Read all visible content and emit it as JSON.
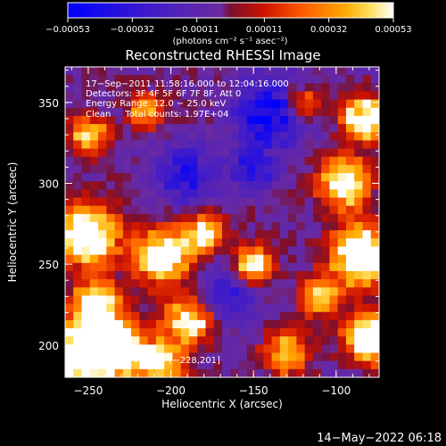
{
  "chart_data": {
    "type": "heatmap",
    "title": "Reconstructed RHESSI Image",
    "xlabel": "Heliocentric X (arcsec)",
    "ylabel": "Heliocentric Y (arcsec)",
    "xlim": [
      -264,
      -74
    ],
    "ylim": [
      180,
      372
    ],
    "x_ticks": [
      -250,
      -200,
      -150,
      -100
    ],
    "x_tick_labels": [
      "−250",
      "−200",
      "−150",
      "−100"
    ],
    "y_ticks": [
      200,
      250,
      300,
      350
    ],
    "y_tick_labels": [
      "200",
      "250",
      "300",
      "350"
    ],
    "colorbar": {
      "min": -0.00053,
      "max": 0.00053,
      "ticks": [
        -0.00053,
        -0.00032,
        -0.00011,
        0.00011,
        0.00032,
        0.00053
      ],
      "tick_labels": [
        "−0.00053",
        "−0.00032",
        "−0.00011",
        "0.00011",
        "0.00032",
        "0.00053"
      ],
      "unit_label": "(photons cm⁻² s⁻¹ asec⁻²)",
      "colormap": [
        "#0000ff",
        "#6a2aa0",
        "#7a1030",
        "#cc1200",
        "#ff5a00",
        "#ffa800",
        "#ffe060",
        "#ffffff"
      ]
    },
    "annotations": [
      "17−Sep−2011 11:58:16.000 to 12:04:16.000",
      "Detectors: 3F 4F 5F 6F 7F 8F, Att 0",
      "Energy Range: 12.0 − 25.0 keV",
      "Clean     Total counts: 1.97E+04"
    ],
    "peak_label": "Position of Peak = [−228,201]",
    "peak": [
      -228,
      201
    ],
    "grid": false,
    "intensity_grid": {
      "nx": 38,
      "ny": 38,
      "note_units": "relative intensity 0..1 along colorbar",
      "hotspots": [
        {
          "x": -252,
          "y": 195,
          "s": 14,
          "a": 0.95
        },
        {
          "x": -230,
          "y": 198,
          "s": 10,
          "a": 0.85
        },
        {
          "x": -250,
          "y": 268,
          "s": 12,
          "a": 0.85
        },
        {
          "x": -205,
          "y": 255,
          "s": 11,
          "a": 0.8
        },
        {
          "x": -180,
          "y": 270,
          "s": 8,
          "a": 0.55
        },
        {
          "x": -150,
          "y": 250,
          "s": 8,
          "a": 0.55
        },
        {
          "x": -245,
          "y": 225,
          "s": 10,
          "a": 0.65
        },
        {
          "x": -190,
          "y": 215,
          "s": 10,
          "a": 0.6
        },
        {
          "x": -205,
          "y": 190,
          "s": 9,
          "a": 0.55
        },
        {
          "x": -85,
          "y": 255,
          "s": 12,
          "a": 0.85
        },
        {
          "x": -80,
          "y": 205,
          "s": 10,
          "a": 0.8
        },
        {
          "x": -95,
          "y": 300,
          "s": 10,
          "a": 0.7
        },
        {
          "x": -82,
          "y": 340,
          "s": 9,
          "a": 0.75
        },
        {
          "x": -110,
          "y": 230,
          "s": 8,
          "a": 0.5
        },
        {
          "x": -215,
          "y": 345,
          "s": 7,
          "a": 0.45
        },
        {
          "x": -120,
          "y": 350,
          "s": 7,
          "a": 0.45
        },
        {
          "x": -250,
          "y": 330,
          "s": 8,
          "a": 0.5
        },
        {
          "x": -130,
          "y": 195,
          "s": 9,
          "a": 0.5
        }
      ],
      "coldspots": [
        {
          "x": -140,
          "y": 345,
          "s": 14,
          "a": 0.45
        },
        {
          "x": -190,
          "y": 305,
          "s": 12,
          "a": 0.35
        },
        {
          "x": -150,
          "y": 310,
          "s": 10,
          "a": 0.3
        },
        {
          "x": -165,
          "y": 230,
          "s": 12,
          "a": 0.25
        }
      ]
    }
  },
  "footer": {
    "timestamp": "14−May−2022 06:18"
  }
}
